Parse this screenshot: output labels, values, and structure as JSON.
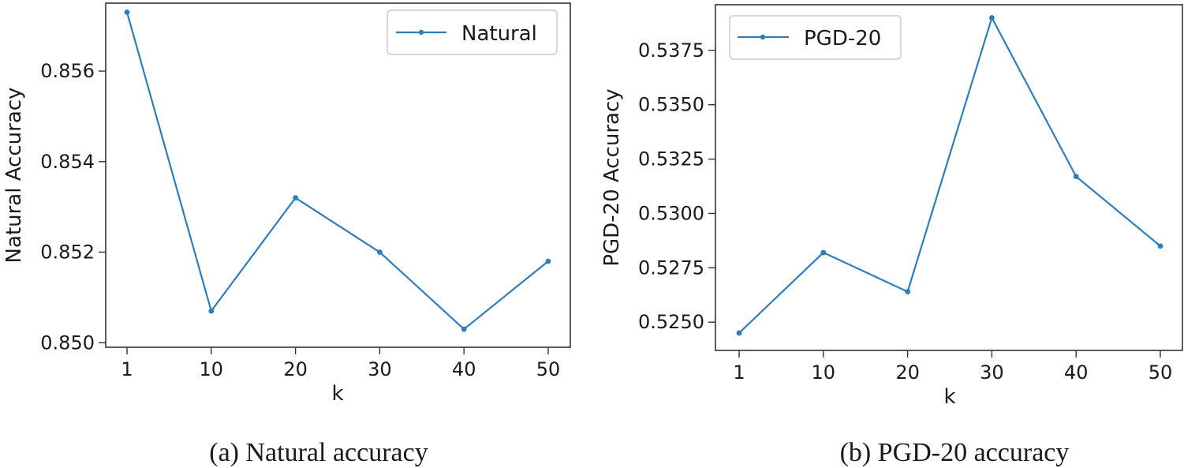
{
  "chart_data": [
    {
      "type": "line",
      "caption": "(a) Natural accuracy",
      "xlabel": "k",
      "ylabel": "Natural Accuracy",
      "categories": [
        "1",
        "10",
        "20",
        "30",
        "40",
        "50"
      ],
      "x_tick_labels": [
        "1",
        "10",
        "20",
        "30",
        "40",
        "50"
      ],
      "y_ticks": [
        0.85,
        0.852,
        0.854,
        0.856
      ],
      "y_tick_labels": [
        "0.850",
        "0.852",
        "0.854",
        "0.856"
      ],
      "ylim": [
        0.8499,
        0.8575
      ],
      "legend_position": "upper-right",
      "grid": false,
      "series": [
        {
          "name": "Natural",
          "color": "#2f7ebc",
          "values": [
            0.8573,
            0.8507,
            0.8532,
            0.852,
            0.8503,
            0.8518
          ]
        }
      ]
    },
    {
      "type": "line",
      "caption": "(b) PGD-20 accuracy",
      "xlabel": "k",
      "ylabel": "PGD-20 Accuracy",
      "categories": [
        "1",
        "10",
        "20",
        "30",
        "40",
        "50"
      ],
      "x_tick_labels": [
        "1",
        "10",
        "20",
        "30",
        "40",
        "50"
      ],
      "y_ticks": [
        0.525,
        0.5275,
        0.53,
        0.5325,
        0.535,
        0.5375
      ],
      "y_tick_labels": [
        "0.5250",
        "0.5275",
        "0.5300",
        "0.5325",
        "0.5350",
        "0.5375"
      ],
      "ylim": [
        0.5237,
        0.5396
      ],
      "legend_position": "upper-left",
      "grid": false,
      "series": [
        {
          "name": "PGD-20",
          "color": "#2f7ebc",
          "values": [
            0.5245,
            0.5282,
            0.5264,
            0.539,
            0.5317,
            0.5285
          ]
        }
      ]
    }
  ]
}
